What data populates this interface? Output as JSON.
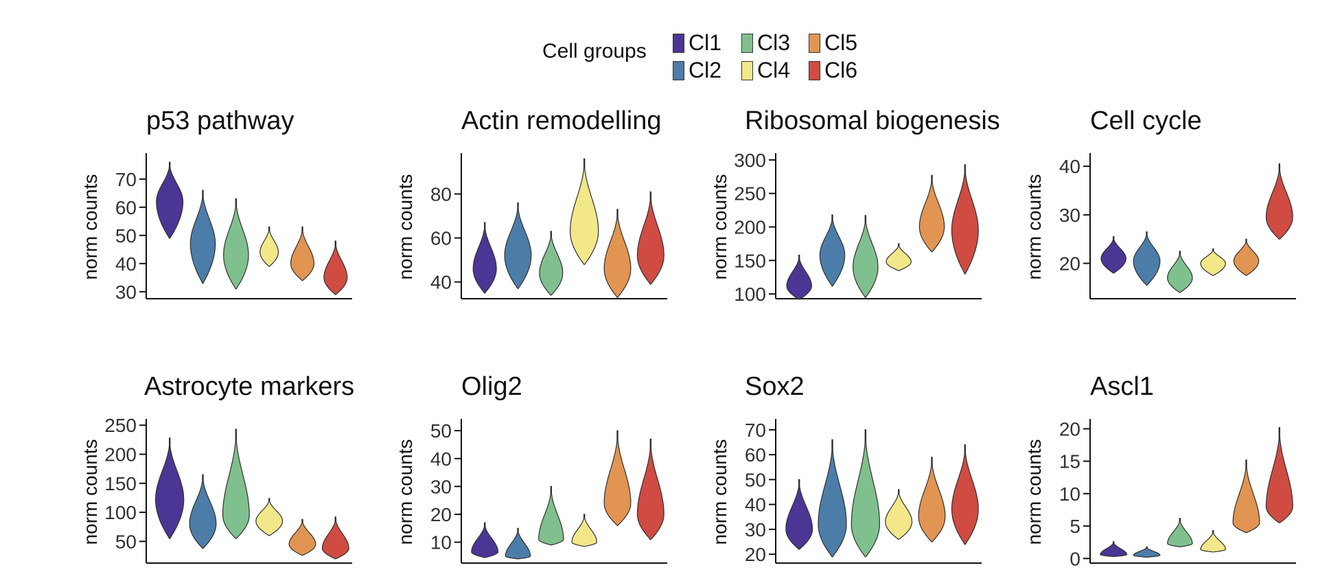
{
  "legend": {
    "title": "Cell groups",
    "groups": [
      {
        "label": "Cl1",
        "color": "#4b3595"
      },
      {
        "label": "Cl2",
        "color": "#4c7da8"
      },
      {
        "label": "Cl3",
        "color": "#80c08f"
      },
      {
        "label": "Cl4",
        "color": "#f2e88a"
      },
      {
        "label": "Cl5",
        "color": "#e29452"
      },
      {
        "label": "Cl6",
        "color": "#d04b42"
      }
    ]
  },
  "chart_data": [
    {
      "type": "violin",
      "title": "p53 pathway",
      "ylabel": "norm counts",
      "ylim": [
        28,
        78
      ],
      "yticks": [
        30,
        40,
        50,
        60,
        70
      ],
      "groups": [
        "Cl1",
        "Cl2",
        "Cl3",
        "Cl4",
        "Cl5",
        "Cl6"
      ],
      "violins": [
        {
          "min": 49,
          "max": 76,
          "mode": 62,
          "width": 0.8
        },
        {
          "min": 33,
          "max": 66,
          "mode": 47,
          "width": 0.75
        },
        {
          "min": 31,
          "max": 63,
          "mode": 43,
          "width": 0.75
        },
        {
          "min": 39,
          "max": 53,
          "mode": 44,
          "width": 0.55
        },
        {
          "min": 34,
          "max": 53,
          "mode": 40,
          "width": 0.7
        },
        {
          "min": 29,
          "max": 48,
          "mode": 35,
          "width": 0.7
        }
      ]
    },
    {
      "type": "violin",
      "title": "Actin remodelling",
      "ylabel": "norm counts",
      "ylim": [
        33,
        97
      ],
      "yticks": [
        40,
        60,
        80
      ],
      "groups": [
        "Cl1",
        "Cl2",
        "Cl3",
        "Cl4",
        "Cl5",
        "Cl6"
      ],
      "violins": [
        {
          "min": 35,
          "max": 67,
          "mode": 46,
          "width": 0.7
        },
        {
          "min": 37,
          "max": 76,
          "mode": 52,
          "width": 0.8
        },
        {
          "min": 34,
          "max": 63,
          "mode": 44,
          "width": 0.7
        },
        {
          "min": 48,
          "max": 96,
          "mode": 63,
          "width": 0.85
        },
        {
          "min": 33,
          "max": 73,
          "mode": 46,
          "width": 0.8
        },
        {
          "min": 39,
          "max": 81,
          "mode": 52,
          "width": 0.8
        }
      ]
    },
    {
      "type": "violin",
      "title": "Ribosomal biogenesis",
      "ylabel": "norm counts",
      "ylim": [
        95,
        305
      ],
      "yticks": [
        100,
        150,
        200,
        250,
        300
      ],
      "groups": [
        "Cl1",
        "Cl2",
        "Cl3",
        "Cl4",
        "Cl5",
        "Cl6"
      ],
      "violins": [
        {
          "min": 92,
          "max": 158,
          "mode": 112,
          "width": 0.75
        },
        {
          "min": 112,
          "max": 218,
          "mode": 158,
          "width": 0.75
        },
        {
          "min": 95,
          "max": 217,
          "mode": 140,
          "width": 0.75
        },
        {
          "min": 135,
          "max": 175,
          "mode": 148,
          "width": 0.75
        },
        {
          "min": 163,
          "max": 277,
          "mode": 200,
          "width": 0.75
        },
        {
          "min": 130,
          "max": 293,
          "mode": 195,
          "width": 0.8
        }
      ]
    },
    {
      "type": "violin",
      "title": "Cell cycle",
      "ylabel": "norm counts",
      "ylim": [
        13,
        42
      ],
      "yticks": [
        20,
        30,
        40
      ],
      "groups": [
        "Cl1",
        "Cl2",
        "Cl3",
        "Cl4",
        "Cl5",
        "Cl6"
      ],
      "violins": [
        {
          "min": 18,
          "max": 25.5,
          "mode": 21,
          "width": 0.75
        },
        {
          "min": 15.5,
          "max": 26.5,
          "mode": 20.5,
          "width": 0.8
        },
        {
          "min": 14,
          "max": 22.5,
          "mode": 17,
          "width": 0.75
        },
        {
          "min": 17.5,
          "max": 23,
          "mode": 20,
          "width": 0.75
        },
        {
          "min": 17.5,
          "max": 25,
          "mode": 20.5,
          "width": 0.75
        },
        {
          "min": 25,
          "max": 40.5,
          "mode": 29.5,
          "width": 0.8
        }
      ]
    },
    {
      "type": "violin",
      "title": "Astrocyte markers",
      "ylabel": "norm counts",
      "ylim": [
        15,
        255
      ],
      "yticks": [
        50,
        100,
        150,
        200,
        250
      ],
      "groups": [
        "Cl1",
        "Cl2",
        "Cl3",
        "Cl4",
        "Cl5",
        "Cl6"
      ],
      "violins": [
        {
          "min": 55,
          "max": 228,
          "mode": 122,
          "width": 0.85
        },
        {
          "min": 38,
          "max": 165,
          "mode": 80,
          "width": 0.8
        },
        {
          "min": 55,
          "max": 243,
          "mode": 95,
          "width": 0.8
        },
        {
          "min": 60,
          "max": 124,
          "mode": 85,
          "width": 0.8
        },
        {
          "min": 26,
          "max": 88,
          "mode": 45,
          "width": 0.8
        },
        {
          "min": 20,
          "max": 92,
          "mode": 38,
          "width": 0.8
        }
      ]
    },
    {
      "type": "violin",
      "title": "Olig2",
      "ylabel": "norm counts",
      "ylim": [
        3,
        53
      ],
      "yticks": [
        10,
        20,
        30,
        40,
        50
      ],
      "groups": [
        "Cl1",
        "Cl2",
        "Cl3",
        "Cl4",
        "Cl5",
        "Cl6"
      ],
      "violins": [
        {
          "min": 4.5,
          "max": 17,
          "mode": 6.5,
          "width": 0.8
        },
        {
          "min": 4,
          "max": 15,
          "mode": 5,
          "width": 0.75
        },
        {
          "min": 9,
          "max": 30,
          "mode": 11,
          "width": 0.75
        },
        {
          "min": 8.5,
          "max": 20,
          "mode": 10,
          "width": 0.75
        },
        {
          "min": 16,
          "max": 50,
          "mode": 24,
          "width": 0.8
        },
        {
          "min": 11,
          "max": 47,
          "mode": 20,
          "width": 0.8
        }
      ]
    },
    {
      "type": "violin",
      "title": "Sox2",
      "ylabel": "norm counts",
      "ylim": [
        17,
        73
      ],
      "yticks": [
        20,
        30,
        40,
        50,
        60,
        70
      ],
      "groups": [
        "Cl1",
        "Cl2",
        "Cl3",
        "Cl4",
        "Cl5",
        "Cl6"
      ],
      "violins": [
        {
          "min": 22,
          "max": 50,
          "mode": 30,
          "width": 0.8
        },
        {
          "min": 19,
          "max": 66,
          "mode": 32,
          "width": 0.85
        },
        {
          "min": 19,
          "max": 70,
          "mode": 32,
          "width": 0.85
        },
        {
          "min": 26,
          "max": 46,
          "mode": 33,
          "width": 0.8
        },
        {
          "min": 25,
          "max": 59,
          "mode": 35,
          "width": 0.8
        },
        {
          "min": 24,
          "max": 64,
          "mode": 38,
          "width": 0.8
        }
      ]
    },
    {
      "type": "violin",
      "title": "Ascl1",
      "ylabel": "norm counts",
      "ylim": [
        -0.5,
        21
      ],
      "yticks": [
        0,
        5,
        10,
        15,
        20
      ],
      "groups": [
        "Cl1",
        "Cl2",
        "Cl3",
        "Cl4",
        "Cl5",
        "Cl6"
      ],
      "violins": [
        {
          "min": 0.3,
          "max": 2.6,
          "mode": 0.6,
          "width": 0.8
        },
        {
          "min": 0.2,
          "max": 1.8,
          "mode": 0.5,
          "width": 0.8
        },
        {
          "min": 1.8,
          "max": 6.2,
          "mode": 2.3,
          "width": 0.75
        },
        {
          "min": 1.0,
          "max": 4.3,
          "mode": 1.4,
          "width": 0.75
        },
        {
          "min": 4.0,
          "max": 15.2,
          "mode": 5.5,
          "width": 0.8
        },
        {
          "min": 5.5,
          "max": 20.2,
          "mode": 8.0,
          "width": 0.8
        }
      ]
    }
  ]
}
